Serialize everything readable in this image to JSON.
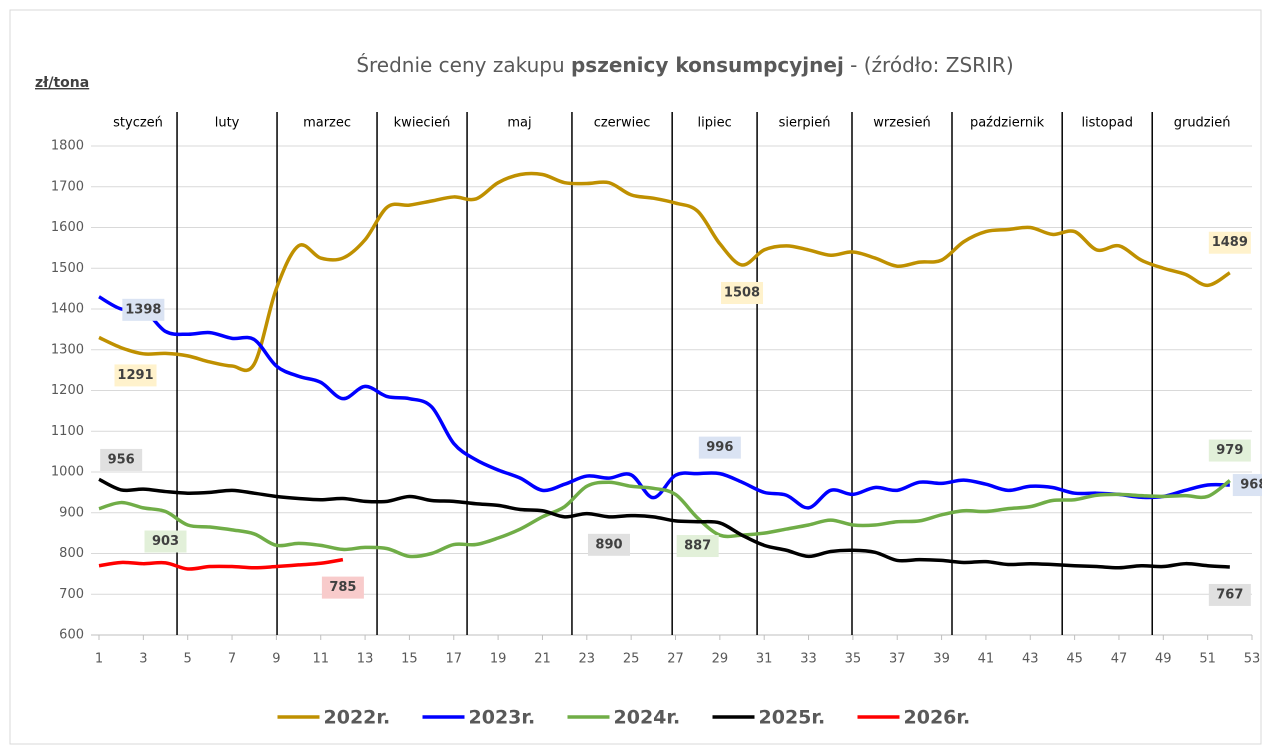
{
  "chart_data": {
    "type": "line",
    "title_parts": [
      "Średnie ceny zakupu ",
      "pszenicy konsumpcyjnej",
      " - (źródło: ZSRIR)"
    ],
    "y_label": "zł/tona",
    "xlim": [
      1,
      53
    ],
    "xticks": [
      1,
      3,
      5,
      7,
      9,
      11,
      13,
      15,
      17,
      19,
      21,
      23,
      25,
      27,
      29,
      31,
      33,
      35,
      37,
      39,
      41,
      43,
      45,
      47,
      49,
      51,
      53
    ],
    "ylim": [
      600,
      1800
    ],
    "yticks": [
      600,
      700,
      800,
      900,
      1000,
      1100,
      1200,
      1300,
      1400,
      1500,
      1600,
      1700,
      1800
    ],
    "grid": true,
    "legend": "bottom",
    "months": [
      "styczeń",
      "luty",
      "marzec",
      "kwiecień",
      "maj",
      "czerwiec",
      "lipiec",
      "sierpień",
      "wrzesień",
      "październik",
      "listopad",
      "grudzień"
    ],
    "month_boundaries": [
      4.52,
      9.03,
      13.54,
      17.6,
      22.33,
      26.85,
      30.68,
      34.96,
      39.47,
      44.44,
      48.5
    ],
    "series": [
      {
        "name": "2022r.",
        "color": "#bf9000",
        "label_color": "#fff2cc",
        "data_labels": [
          3,
          29,
          51
        ],
        "values": [
          1330,
          1305,
          1290,
          1291,
          1285,
          1270,
          1260,
          1265,
          1450,
          1555,
          1525,
          1525,
          1570,
          1650,
          1655,
          1665,
          1675,
          1670,
          1710,
          1730,
          1730,
          1710,
          1708,
          1710,
          1680,
          1672,
          1660,
          1640,
          1560,
          1508,
          1545,
          1555,
          1545,
          1532,
          1540,
          1525,
          1505,
          1515,
          1520,
          1565,
          1590,
          1595,
          1600,
          1583,
          1590,
          1545,
          1555,
          1520,
          1500,
          1485,
          1458,
          1489
        ]
      },
      {
        "name": "2023r.",
        "color": "#0000ff",
        "label_color": "#dae3f3",
        "data_labels": [
          2,
          28,
          51
        ],
        "values": [
          1430,
          1400,
          1398,
          1345,
          1338,
          1342,
          1328,
          1325,
          1260,
          1235,
          1220,
          1180,
          1210,
          1185,
          1180,
          1160,
          1070,
          1030,
          1005,
          985,
          955,
          970,
          990,
          985,
          993,
          937,
          992,
          996,
          996,
          975,
          950,
          943,
          912,
          955,
          945,
          962,
          955,
          975,
          972,
          980,
          970,
          955,
          965,
          962,
          948,
          948,
          945,
          938,
          940,
          955,
          968,
          968
        ]
      },
      {
        "name": "2024r.",
        "color": "#70ad47",
        "label_color": "#e2f0d9",
        "data_labels": [
          3,
          27,
          51
        ],
        "values": [
          910,
          925,
          912,
          903,
          870,
          865,
          858,
          848,
          820,
          825,
          820,
          810,
          815,
          812,
          793,
          800,
          822,
          822,
          838,
          860,
          890,
          915,
          965,
          975,
          965,
          960,
          945,
          887,
          845,
          845,
          850,
          860,
          870,
          882,
          870,
          870,
          878,
          880,
          895,
          905,
          903,
          910,
          915,
          930,
          932,
          943,
          945,
          942,
          940,
          942,
          940,
          979
        ]
      },
      {
        "name": "2025r.",
        "color": "#000000",
        "label_color": "#e0e0e0",
        "data_labels": [
          1,
          23,
          51
        ],
        "values": [
          982,
          956,
          958,
          952,
          948,
          950,
          955,
          948,
          940,
          935,
          932,
          935,
          928,
          928,
          940,
          930,
          928,
          922,
          918,
          908,
          905,
          890,
          898,
          890,
          893,
          890,
          880,
          878,
          875,
          845,
          820,
          808,
          793,
          805,
          808,
          803,
          783,
          785,
          783,
          778,
          780,
          773,
          775,
          773,
          770,
          768,
          765,
          770,
          768,
          775,
          770,
          767
        ]
      },
      {
        "name": "2026r.",
        "color": "#ff0000",
        "label_color": "#f8cbcb",
        "data_labels": [
          11
        ],
        "values": [
          770,
          778,
          775,
          777,
          762,
          768,
          768,
          765,
          768,
          772,
          776,
          785
        ]
      }
    ]
  }
}
